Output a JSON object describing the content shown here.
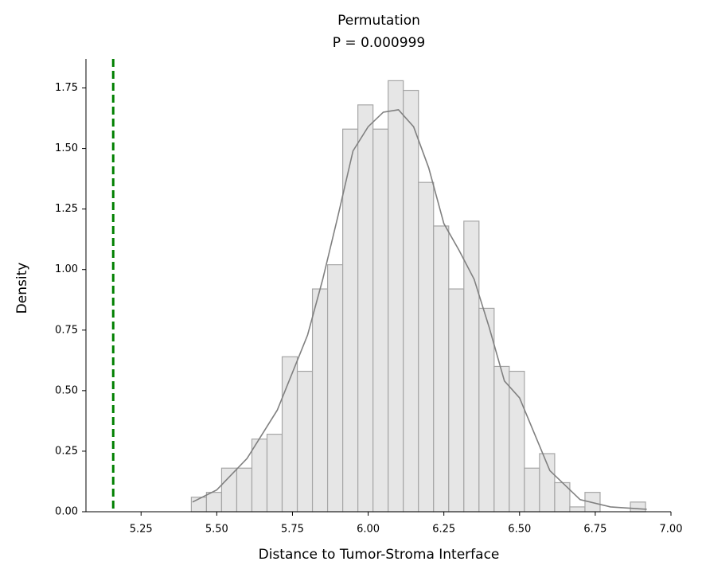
{
  "chart_data": {
    "type": "histogram",
    "title": "Permutation",
    "subtitle": "P = 0.000999",
    "x_label": "Distance to Tumor-Stroma Interface",
    "y_label": "Density",
    "bins": [
      5.416,
      5.466,
      5.516,
      5.566,
      5.616,
      5.666,
      5.716,
      5.766,
      5.816,
      5.866,
      5.916,
      5.966,
      6.016,
      6.066,
      6.116,
      6.166,
      6.216,
      6.266,
      6.316,
      6.366,
      6.416,
      6.466,
      6.516,
      6.566,
      6.616,
      6.666,
      6.716,
      6.766,
      6.816,
      6.866,
      6.916
    ],
    "values": [
      0.06,
      0.08,
      0.18,
      0.18,
      0.3,
      0.32,
      0.64,
      0.58,
      0.92,
      1.02,
      1.58,
      1.68,
      1.58,
      1.78,
      1.74,
      1.36,
      1.18,
      0.92,
      1.2,
      0.84,
      0.6,
      0.58,
      0.18,
      0.24,
      0.12,
      0.02,
      0.08,
      0,
      0,
      0.04
    ],
    "color": "#e6e6e6",
    "edge_color": "#a6a6a6",
    "kde": {
      "color": "#808080",
      "x": [
        5.42,
        5.5,
        5.6,
        5.7,
        5.8,
        5.85,
        5.9,
        5.95,
        6.0,
        6.05,
        6.1,
        6.15,
        6.2,
        6.25,
        6.3,
        6.35,
        6.4,
        6.45,
        6.5,
        6.6,
        6.7,
        6.8,
        6.92
      ],
      "values": [
        0.04,
        0.09,
        0.22,
        0.42,
        0.73,
        0.96,
        1.22,
        1.49,
        1.59,
        1.65,
        1.66,
        1.59,
        1.42,
        1.19,
        1.08,
        0.96,
        0.76,
        0.54,
        0.47,
        0.17,
        0.05,
        0.02,
        0.01
      ]
    },
    "vline": {
      "x": 5.158,
      "color": "#008000"
    },
    "xlim": [
      5.068,
      7.0
    ],
    "ylim": [
      0,
      1.87
    ],
    "xticks": [
      5.25,
      {
        "value": 5.5,
        "label": "5.50"
      },
      5.75,
      {
        "value": 6.0,
        "label": "6.00"
      },
      6.25,
      {
        "value": 6.5,
        "label": "6.50"
      },
      6.75,
      {
        "value": 7.0,
        "label": "7.00"
      }
    ],
    "yticks": [
      {
        "value": 0,
        "label": "0.00"
      },
      0.25,
      {
        "value": 0.5,
        "label": "0.50"
      },
      0.75,
      {
        "value": 1.0,
        "label": "1.00"
      },
      1.25,
      {
        "value": 1.5,
        "label": "1.50"
      },
      1.75
    ]
  }
}
